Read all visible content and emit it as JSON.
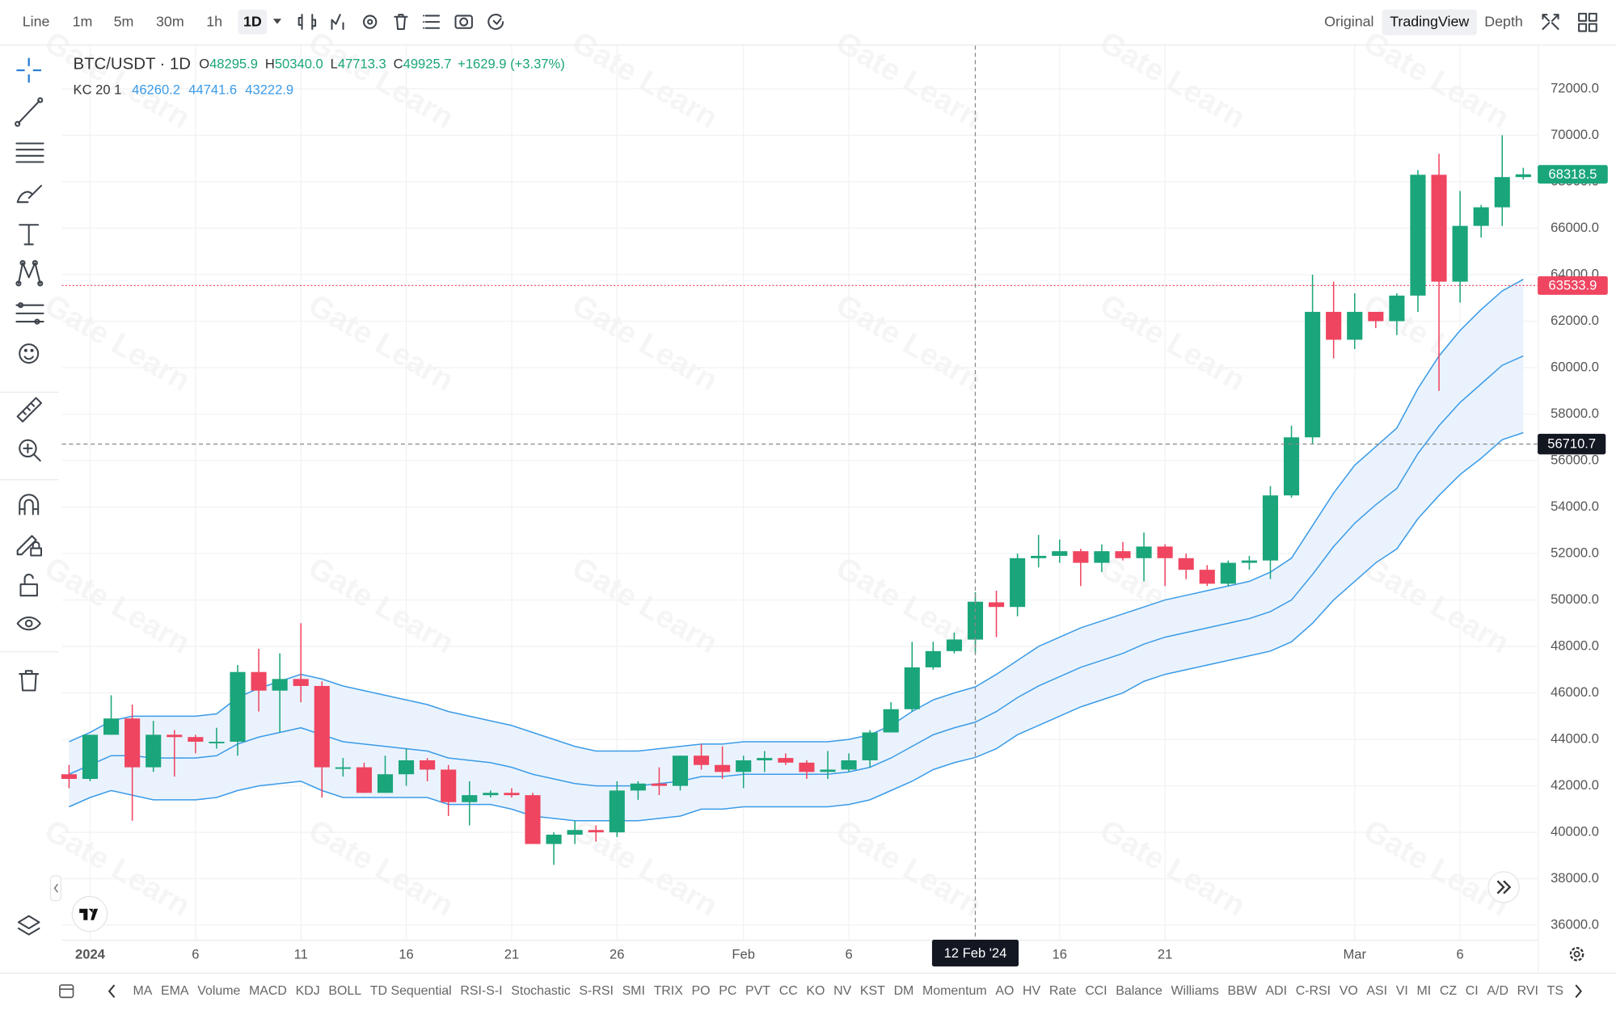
{
  "toolbar": {
    "intervals": [
      "Line",
      "1m",
      "5m",
      "30m",
      "1h",
      "1D"
    ],
    "views": [
      "Original",
      "TradingView",
      "Depth"
    ]
  },
  "watermark": "Gate Learn",
  "legend": {
    "symbol": "BTC/USDT",
    "interval": "· 1D",
    "fields": [
      {
        "key": "O",
        "value": "48295.9"
      },
      {
        "key": "H",
        "value": "50340.0"
      },
      {
        "key": "L",
        "value": "47713.3"
      },
      {
        "key": "C",
        "value": "49925.7"
      }
    ],
    "change": "+1629.9 (+3.37%)"
  },
  "chart_data": {
    "type": "candlestick",
    "categories": [
      null,
      "2024",
      null,
      null,
      null,
      null,
      "6",
      null,
      null,
      null,
      null,
      "11",
      null,
      null,
      null,
      null,
      "16",
      null,
      null,
      null,
      null,
      "21",
      null,
      null,
      null,
      null,
      "26",
      null,
      null,
      null,
      null,
      null,
      "Feb",
      null,
      null,
      null,
      null,
      "6",
      null,
      null,
      null,
      null,
      null,
      null,
      null,
      null,
      null,
      "16",
      null,
      null,
      null,
      null,
      "21",
      null,
      null,
      null,
      null,
      null,
      null,
      null,
      null,
      "Mar",
      null,
      null,
      null,
      null,
      "6",
      null,
      null,
      null
    ],
    "open": [
      42500,
      42300,
      44200,
      44900,
      42800,
      44200,
      44100,
      43900,
      43900,
      46900,
      46100,
      46600,
      46300,
      42800,
      42800,
      41700,
      42500,
      43100,
      42700,
      41300,
      41600,
      41700,
      41600,
      39500,
      39900,
      40100,
      40000,
      41800,
      42100,
      42000,
      43300,
      42900,
      42600,
      43100,
      43200,
      43000,
      42600,
      42700,
      43100,
      44300,
      45300,
      47100,
      47800,
      48295.9,
      49900,
      49700,
      51800,
      51900,
      52100,
      51600,
      52100,
      51800,
      52300,
      51800,
      51300,
      50700,
      51600,
      51700,
      54500,
      57000,
      62400,
      61200,
      62400,
      62000,
      63100,
      68300,
      63700,
      66100,
      66900,
      68200
    ],
    "high": [
      42900,
      44200,
      45900,
      45500,
      44800,
      44400,
      44200,
      44500,
      47200,
      47900,
      47700,
      49000,
      46500,
      43200,
      43000,
      43300,
      43600,
      43200,
      42900,
      42200,
      41800,
      41900,
      41700,
      40000,
      40500,
      40300,
      42200,
      42200,
      42800,
      43300,
      43800,
      43700,
      43300,
      43500,
      43400,
      43100,
      43500,
      43400,
      44400,
      45600,
      48200,
      48200,
      48600,
      50340,
      50400,
      52000,
      52800,
      52600,
      52200,
      52400,
      52500,
      52900,
      52400,
      52000,
      51500,
      51700,
      51900,
      54900,
      57500,
      64000,
      63700,
      63200,
      62400,
      63200,
      68500,
      69200,
      67600,
      67000,
      70000,
      68600
    ],
    "low": [
      41900,
      42200,
      44200,
      40500,
      42600,
      42400,
      43400,
      43600,
      43300,
      45200,
      44300,
      45600,
      41500,
      42400,
      41700,
      41700,
      42000,
      42200,
      40700,
      40300,
      41500,
      41500,
      39500,
      38600,
      39500,
      39600,
      39800,
      41400,
      41600,
      41800,
      42700,
      42300,
      41900,
      42600,
      42900,
      42300,
      42300,
      42600,
      42800,
      44300,
      45200,
      47000,
      47700,
      47713.3,
      48400,
      49300,
      51400,
      51600,
      50600,
      51200,
      51700,
      50800,
      50600,
      50900,
      50600,
      50600,
      51300,
      50900,
      54400,
      56700,
      60400,
      60800,
      61700,
      61400,
      62400,
      59000,
      62800,
      65600,
      66100,
      68100
    ],
    "close": [
      42300,
      44200,
      44900,
      42800,
      44200,
      44100,
      43900,
      43900,
      46900,
      46100,
      46600,
      46300,
      42800,
      42800,
      41700,
      42500,
      43100,
      42700,
      41300,
      41600,
      41700,
      41600,
      39500,
      39900,
      40100,
      40000,
      41800,
      42100,
      42000,
      43300,
      42900,
      42600,
      43100,
      43200,
      43000,
      42600,
      42700,
      43100,
      44300,
      45300,
      47100,
      47800,
      48300,
      49925.7,
      49700,
      51800,
      51900,
      52100,
      51600,
      52100,
      51800,
      52300,
      51800,
      51300,
      50700,
      51600,
      51700,
      54500,
      57000,
      62400,
      61200,
      62400,
      62000,
      63100,
      68300,
      63700,
      66100,
      66900,
      68200,
      68318.5
    ],
    "up_color": "#1aa57b",
    "down_color": "#ef4560",
    "indicator": {
      "label": "KC 20 1",
      "legend_values": [
        "46260.2",
        "44741.6",
        "43222.9"
      ],
      "color": "#3b9be8",
      "fill": "#eaf3fd",
      "lines": [
        {
          "values": [
            43900,
            44300,
            44800,
            45000,
            45000,
            45000,
            45000,
            45100,
            45800,
            46200,
            46500,
            46800,
            46600,
            46300,
            46100,
            45900,
            45700,
            45500,
            45200,
            45000,
            44800,
            44600,
            44300,
            44000,
            43700,
            43500,
            43500,
            43500,
            43600,
            43700,
            43800,
            43800,
            43900,
            43900,
            43900,
            43900,
            43900,
            44000,
            44200,
            44600,
            45200,
            45700,
            46000,
            46260.2,
            46800,
            47400,
            48000,
            48400,
            48800,
            49100,
            49400,
            49700,
            50000,
            50200,
            50400,
            50600,
            50800,
            51200,
            51800,
            53200,
            54600,
            55800,
            56600,
            57400,
            59100,
            60500,
            61600,
            62500,
            63300,
            63800
          ]
        },
        {
          "values": [
            42500,
            42900,
            43300,
            43300,
            43200,
            43200,
            43200,
            43300,
            43800,
            44100,
            44300,
            44500,
            44200,
            43900,
            43800,
            43700,
            43600,
            43500,
            43200,
            43100,
            43000,
            42800,
            42500,
            42300,
            42100,
            42000,
            42000,
            42000,
            42100,
            42200,
            42400,
            42400,
            42500,
            42500,
            42500,
            42500,
            42500,
            42600,
            42800,
            43200,
            43700,
            44200,
            44500,
            44741.6,
            45200,
            45800,
            46300,
            46700,
            47100,
            47400,
            47700,
            48100,
            48400,
            48600,
            48800,
            49000,
            49200,
            49500,
            50000,
            51100,
            52300,
            53300,
            54100,
            54800,
            56300,
            57500,
            58500,
            59300,
            60100,
            60500
          ]
        },
        {
          "values": [
            41100,
            41500,
            41800,
            41600,
            41400,
            41400,
            41400,
            41500,
            41800,
            42000,
            42100,
            42200,
            41800,
            41500,
            41500,
            41500,
            41500,
            41500,
            41200,
            41200,
            41200,
            41000,
            40700,
            40600,
            40500,
            40500,
            40500,
            40500,
            40600,
            40700,
            41000,
            41000,
            41100,
            41100,
            41100,
            41100,
            41100,
            41200,
            41400,
            41800,
            42200,
            42700,
            43000,
            43222.9,
            43600,
            44200,
            44600,
            45000,
            45400,
            45700,
            46000,
            46500,
            46800,
            47000,
            47200,
            47400,
            47600,
            47800,
            48200,
            49000,
            50000,
            50800,
            51600,
            52200,
            53500,
            54500,
            55400,
            56100,
            56900,
            57200
          ]
        }
      ]
    },
    "ylim": [
      35380,
      73860
    ],
    "yticks": [
      {
        "value": 36000,
        "label": "36000.0"
      },
      {
        "value": 38000,
        "label": "38000.0"
      },
      {
        "value": 40000,
        "label": "40000.0"
      },
      {
        "value": 42000,
        "label": "42000.0"
      },
      {
        "value": 44000,
        "label": "44000.0"
      },
      {
        "value": 46000,
        "label": "46000.0"
      },
      {
        "value": 48000,
        "label": "48000.0"
      },
      {
        "value": 50000,
        "label": "50000.0"
      },
      {
        "value": 52000,
        "label": "52000.0"
      },
      {
        "value": 54000,
        "label": "54000.0"
      },
      {
        "value": 56000,
        "label": "56000.0"
      },
      {
        "value": 58000,
        "label": "58000.0"
      },
      {
        "value": 60000,
        "label": "60000.0"
      },
      {
        "value": 62000,
        "label": "62000.0"
      },
      {
        "value": 64000,
        "label": "64000.0"
      },
      {
        "value": 66000,
        "label": "66000.0"
      },
      {
        "value": 68000,
        "label": "68000.0"
      },
      {
        "value": 70000,
        "label": "70000.0"
      },
      {
        "value": 72000,
        "label": "72000.0"
      }
    ],
    "grid": true,
    "price_lines": [
      {
        "value": 68318.5,
        "color": "#1aa57b"
      },
      {
        "value": 63533.9,
        "color": "#ef4560",
        "line": "dotted"
      }
    ],
    "crosshair": {
      "x_label": "12 Feb '24",
      "value": 56710.7
    }
  },
  "indicators": [
    "MA",
    "EMA",
    "Volume",
    "MACD",
    "KDJ",
    "BOLL",
    "TD Sequential",
    "RSI-S-I",
    "Stochastic",
    "S-RSI",
    "SMI",
    "TRIX",
    "PO",
    "PC",
    "PVT",
    "CC",
    "KO",
    "NV",
    "KST",
    "DM",
    "Momentum",
    "AO",
    "HV",
    "Rate",
    "CCI",
    "Balance",
    "Williams",
    "BBW",
    "ADI",
    "C-RSI",
    "VO",
    "ASI",
    "VI",
    "MI",
    "CZ",
    "CI",
    "A/D",
    "RVI",
    "TS"
  ]
}
